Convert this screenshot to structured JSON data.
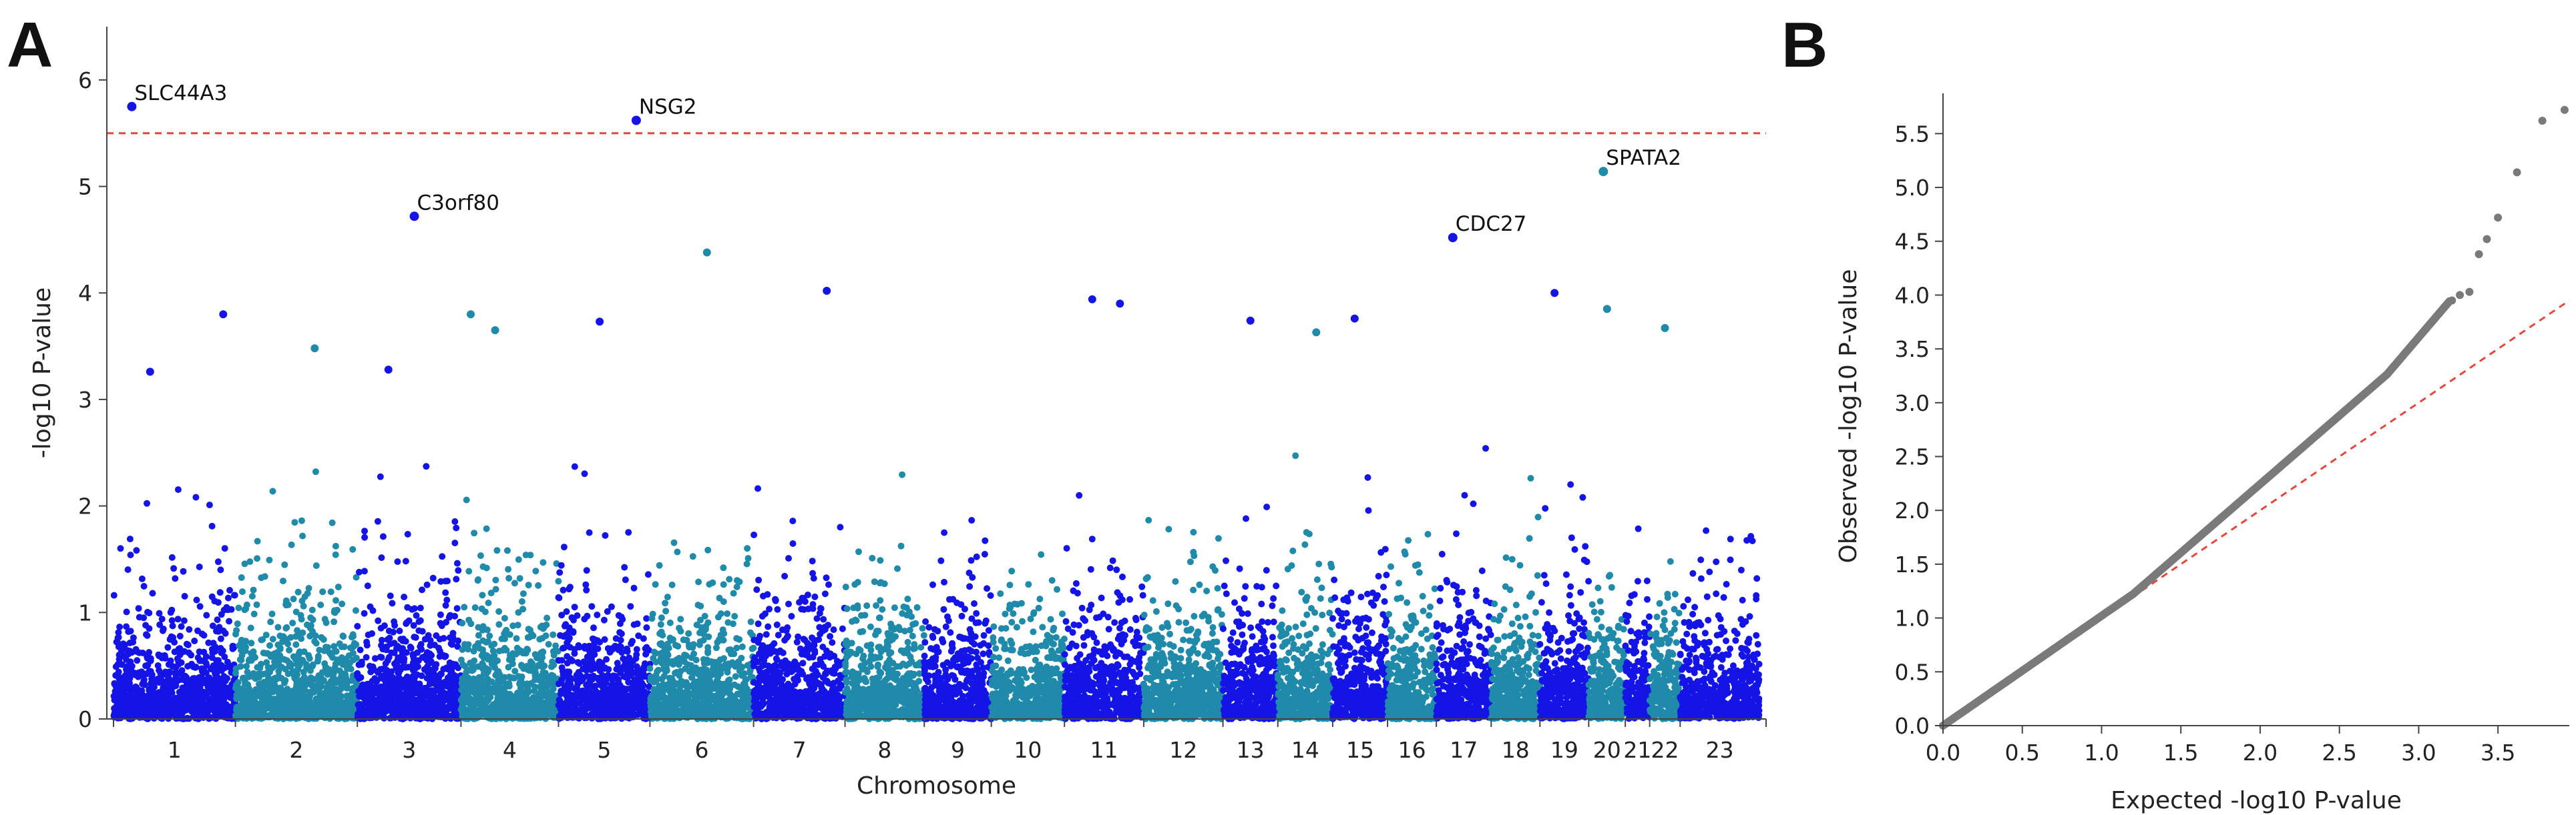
{
  "panels": {
    "a": "A",
    "b": "B"
  },
  "chart_data": [
    {
      "type": "scatter",
      "subtype": "manhattan",
      "panel": "A",
      "xlabel": "Chromosome",
      "ylabel": "-log10 P-value",
      "ylim": [
        0,
        6.5
      ],
      "yticks": [
        0,
        1,
        2,
        3,
        4,
        5,
        6
      ],
      "threshold": 5.5,
      "threshold_color": "#e8453c",
      "colors": [
        "#1414e6",
        "#1f8aaa"
      ],
      "chromosomes": [
        "1",
        "2",
        "3",
        "4",
        "5",
        "6",
        "7",
        "8",
        "9",
        "10",
        "11",
        "12",
        "13",
        "14",
        "15",
        "16",
        "17",
        "18",
        "19",
        "20",
        "21",
        "22",
        "23"
      ],
      "chrom_weights": [
        1.0,
        1.0,
        0.85,
        0.8,
        0.75,
        0.85,
        0.75,
        0.65,
        0.55,
        0.6,
        0.65,
        0.65,
        0.45,
        0.45,
        0.45,
        0.4,
        0.45,
        0.4,
        0.4,
        0.3,
        0.2,
        0.25,
        0.65
      ],
      "annotated_hits": [
        {
          "gene": "SLC44A3",
          "chrom": "1",
          "pos": 0.15,
          "y": 5.75
        },
        {
          "gene": "NSG2",
          "chrom": "5",
          "pos": 0.85,
          "y": 5.62
        },
        {
          "gene": "C3orf80",
          "chrom": "3",
          "pos": 0.55,
          "y": 4.72
        },
        {
          "gene": "CDC27",
          "chrom": "17",
          "pos": 0.3,
          "y": 4.52
        },
        {
          "gene": "SPATA2",
          "chrom": "20",
          "pos": 0.4,
          "y": 5.14
        }
      ],
      "other_peaks": [
        {
          "chrom": "1",
          "pos": 0.9,
          "y": 3.8
        },
        {
          "chrom": "1",
          "pos": 0.3,
          "y": 3.26
        },
        {
          "chrom": "2",
          "pos": 0.65,
          "y": 3.48
        },
        {
          "chrom": "3",
          "pos": 0.3,
          "y": 3.28
        },
        {
          "chrom": "4",
          "pos": 0.1,
          "y": 3.8
        },
        {
          "chrom": "4",
          "pos": 0.35,
          "y": 3.65
        },
        {
          "chrom": "5",
          "pos": 0.45,
          "y": 3.73
        },
        {
          "chrom": "6",
          "pos": 0.55,
          "y": 4.38
        },
        {
          "chrom": "7",
          "pos": 0.8,
          "y": 4.02
        },
        {
          "chrom": "11",
          "pos": 0.35,
          "y": 3.94
        },
        {
          "chrom": "11",
          "pos": 0.7,
          "y": 3.9
        },
        {
          "chrom": "13",
          "pos": 0.5,
          "y": 3.74
        },
        {
          "chrom": "14",
          "pos": 0.7,
          "y": 3.63
        },
        {
          "chrom": "15",
          "pos": 0.4,
          "y": 3.76
        },
        {
          "chrom": "19",
          "pos": 0.3,
          "y": 4.0
        },
        {
          "chrom": "20",
          "pos": 0.5,
          "y": 3.85
        },
        {
          "chrom": "22",
          "pos": 0.5,
          "y": 3.67
        }
      ]
    },
    {
      "type": "scatter",
      "subtype": "qq",
      "panel": "B",
      "xlabel": "Expected -log10 P-value",
      "ylabel": "Observed -log10 P-value",
      "xlim": [
        0,
        3.95
      ],
      "ylim": [
        0,
        5.75
      ],
      "xticks": [
        "0.0",
        "0.5",
        "1.0",
        "1.5",
        "2.0",
        "2.5",
        "3.0",
        "3.5"
      ],
      "yticks": [
        "0.0",
        "0.5",
        "1.0",
        "1.5",
        "2.0",
        "2.5",
        "3.0",
        "3.5",
        "4.0",
        "4.5",
        "5.0",
        "5.5"
      ],
      "point_color": "#7a7a7a",
      "reference_line_color": "#e8453c",
      "lambda_estimate": 1.18,
      "top_points": [
        {
          "x": 3.92,
          "y": 5.72
        },
        {
          "x": 3.78,
          "y": 5.62
        },
        {
          "x": 3.62,
          "y": 5.14
        },
        {
          "x": 3.5,
          "y": 4.72
        },
        {
          "x": 3.43,
          "y": 4.52
        },
        {
          "x": 3.38,
          "y": 4.38
        },
        {
          "x": 3.32,
          "y": 4.03
        },
        {
          "x": 3.26,
          "y": 4.0
        },
        {
          "x": 3.21,
          "y": 3.95
        }
      ]
    }
  ]
}
